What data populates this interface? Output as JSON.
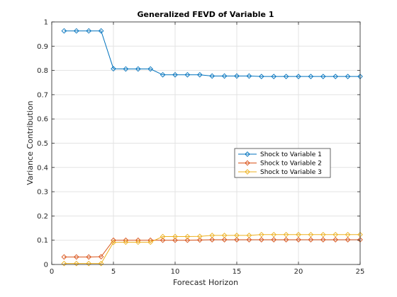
{
  "chart_data": {
    "type": "line",
    "title": "Generalized FEVD of Variable 1",
    "xlabel": "Forecast Horizon",
    "ylabel": "Variance Contribution",
    "xlim": [
      0,
      25
    ],
    "ylim": [
      0,
      1
    ],
    "xticks": [
      0,
      5,
      10,
      15,
      20,
      25
    ],
    "yticks": [
      0,
      0.1,
      0.2,
      0.3,
      0.4,
      0.5,
      0.6,
      0.7,
      0.8,
      0.9,
      1
    ],
    "xtick_labels": [
      "0",
      "5",
      "10",
      "15",
      "20",
      "25"
    ],
    "ytick_labels": [
      "0",
      "0.1",
      "0.2",
      "0.3",
      "0.4",
      "0.5",
      "0.6",
      "0.7",
      "0.8",
      "0.9",
      "1"
    ],
    "grid": true,
    "legend_position": "center-right",
    "x": [
      1,
      2,
      3,
      4,
      5,
      6,
      7,
      8,
      9,
      10,
      11,
      12,
      13,
      14,
      15,
      16,
      17,
      18,
      19,
      20,
      21,
      22,
      23,
      24,
      25
    ],
    "series": [
      {
        "name": "Shock to Variable 1",
        "color": "#0072BD",
        "marker": "diamond",
        "values": [
          0.963,
          0.963,
          0.963,
          0.963,
          0.807,
          0.806,
          0.806,
          0.806,
          0.782,
          0.782,
          0.782,
          0.782,
          0.777,
          0.777,
          0.777,
          0.777,
          0.775,
          0.775,
          0.775,
          0.775,
          0.775,
          0.775,
          0.775,
          0.775,
          0.775
        ]
      },
      {
        "name": "Shock to Variable 2",
        "color": "#D95319",
        "marker": "diamond",
        "values": [
          0.031,
          0.031,
          0.031,
          0.032,
          0.1,
          0.1,
          0.1,
          0.1,
          0.1,
          0.1,
          0.1,
          0.101,
          0.102,
          0.102,
          0.102,
          0.102,
          0.102,
          0.102,
          0.102,
          0.102,
          0.102,
          0.102,
          0.102,
          0.102,
          0.102
        ]
      },
      {
        "name": "Shock to Variable 3",
        "color": "#EDB120",
        "marker": "diamond",
        "values": [
          0.004,
          0.004,
          0.004,
          0.004,
          0.091,
          0.092,
          0.092,
          0.092,
          0.115,
          0.115,
          0.115,
          0.116,
          0.12,
          0.12,
          0.12,
          0.12,
          0.123,
          0.123,
          0.123,
          0.123,
          0.123,
          0.123,
          0.123,
          0.123,
          0.123
        ]
      }
    ]
  }
}
